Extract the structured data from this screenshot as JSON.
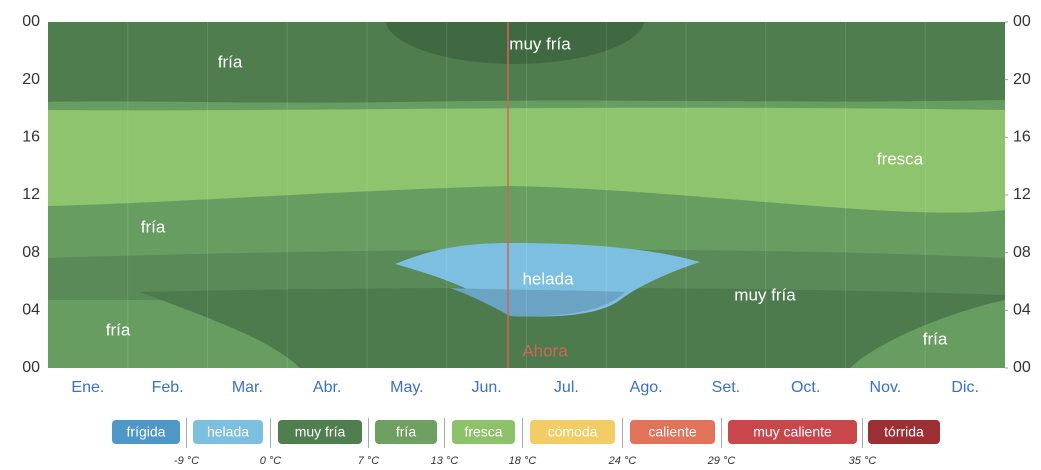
{
  "chart_data": {
    "type": "contour",
    "categories": [
      "Ene.",
      "Feb.",
      "Mar.",
      "Abr.",
      "May.",
      "Jun.",
      "Jul.",
      "Ago.",
      "Set.",
      "Oct.",
      "Nov.",
      "Dic."
    ],
    "ylim": [
      0,
      24
    ],
    "yticks": [
      {
        "value": 0,
        "label": "00"
      },
      {
        "value": 4,
        "label": "04"
      },
      {
        "value": 8,
        "label": "08"
      },
      12,
      16,
      20,
      {
        "value": 24,
        "label": "00"
      }
    ],
    "annotations": [
      "fría",
      "muy fría",
      "fresca",
      "fría",
      "helada",
      "muy fría",
      "fría",
      "fría"
    ],
    "marker_label": "Ahora",
    "legend": [
      {
        "name": "frígida",
        "color": "#4f97c6"
      },
      {
        "name": "helada",
        "color": "#7cbfdf"
      },
      {
        "name": "muy fría",
        "color": "#4f7f4f"
      },
      {
        "name": "fría",
        "color": "#6ea062"
      },
      {
        "name": "fresca",
        "color": "#8dc26a"
      },
      {
        "name": "cómoda",
        "color": "#f2cd65"
      },
      {
        "name": "caliente",
        "color": "#e0735a"
      },
      {
        "name": "muy caliente",
        "color": "#c9474a"
      },
      {
        "name": "tórrida",
        "color": "#9c2f34"
      }
    ],
    "thresholds": [
      {
        "value": -9,
        "label": "-9 °C"
      },
      {
        "value": 0,
        "label": "0 °C"
      },
      {
        "value": 7,
        "label": "7 °C"
      },
      {
        "value": 13,
        "label": "13 °C"
      },
      {
        "value": 18,
        "label": "18 °C"
      },
      {
        "value": 24,
        "label": "24 °C"
      },
      {
        "value": 29,
        "label": "29 °C"
      },
      {
        "value": 35,
        "label": "35 °C"
      }
    ]
  }
}
